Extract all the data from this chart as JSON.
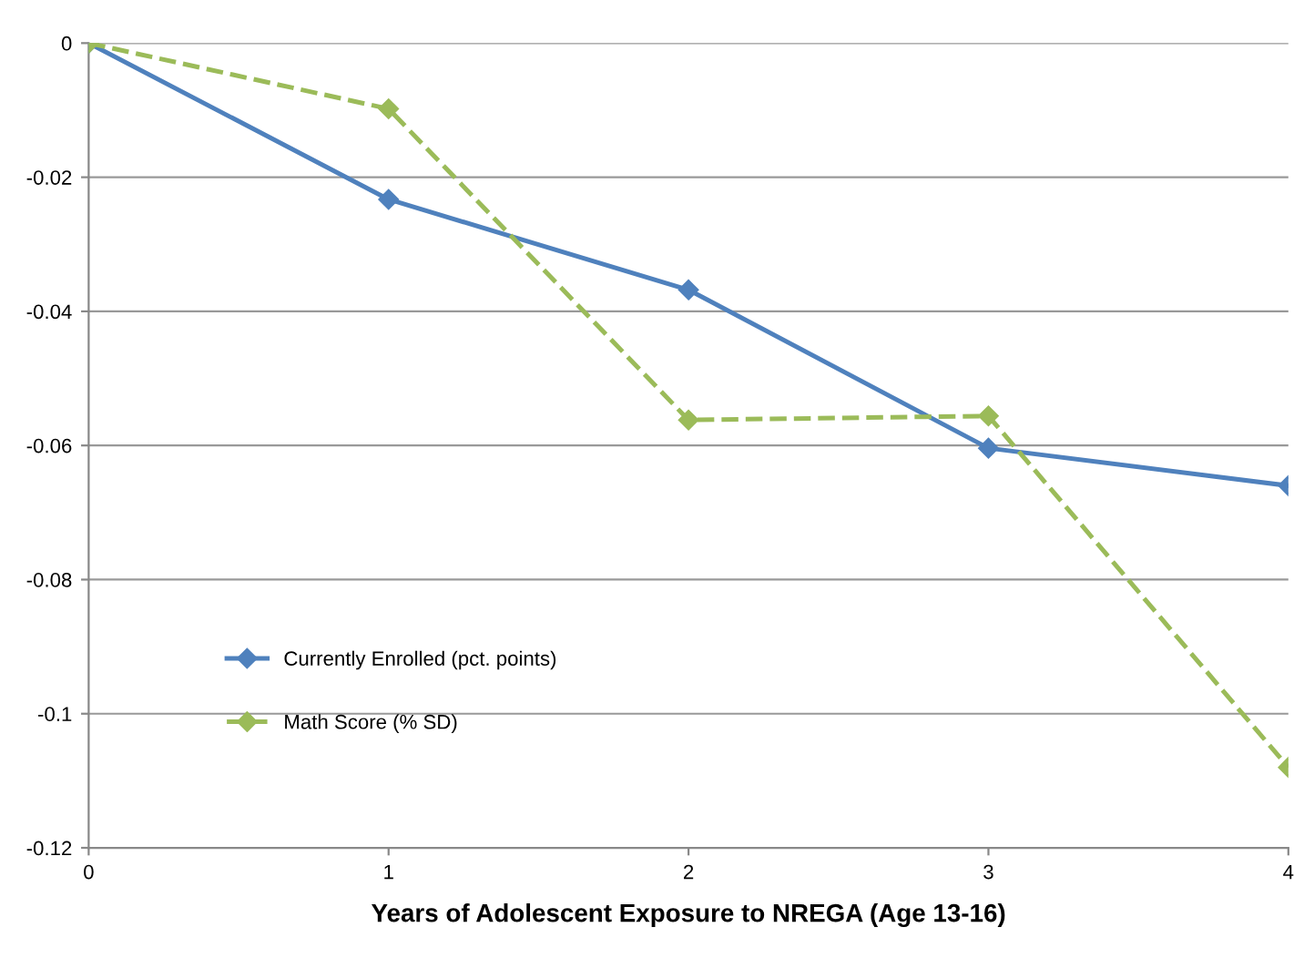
{
  "chart_data": {
    "type": "line",
    "xlabel": "Years of Adolescent Exposure to NREGA (Age 13-16)",
    "x": [
      0,
      1,
      2,
      3,
      4
    ],
    "series": [
      {
        "name": "Currently Enrolled (pct. points)",
        "color": "#4f81bd",
        "values": [
          0,
          -0.0233,
          -0.0368,
          -0.0604,
          -0.066
        ],
        "line_style": "solid"
      },
      {
        "name": "Math Score (% SD)",
        "color": "#9bbb59",
        "values": [
          0,
          -0.0098,
          -0.0562,
          -0.0556,
          -0.108
        ],
        "line_style": "dashed"
      }
    ],
    "xlim": [
      0,
      4
    ],
    "xticks": [
      0,
      1,
      2,
      3,
      4
    ],
    "ylim": [
      -0.12,
      0
    ],
    "yticks": [
      -0.12,
      -0.1,
      -0.08,
      -0.06,
      -0.04,
      -0.02,
      0
    ],
    "grid": "y",
    "legend": "bottom left",
    "marker": "diamond"
  }
}
